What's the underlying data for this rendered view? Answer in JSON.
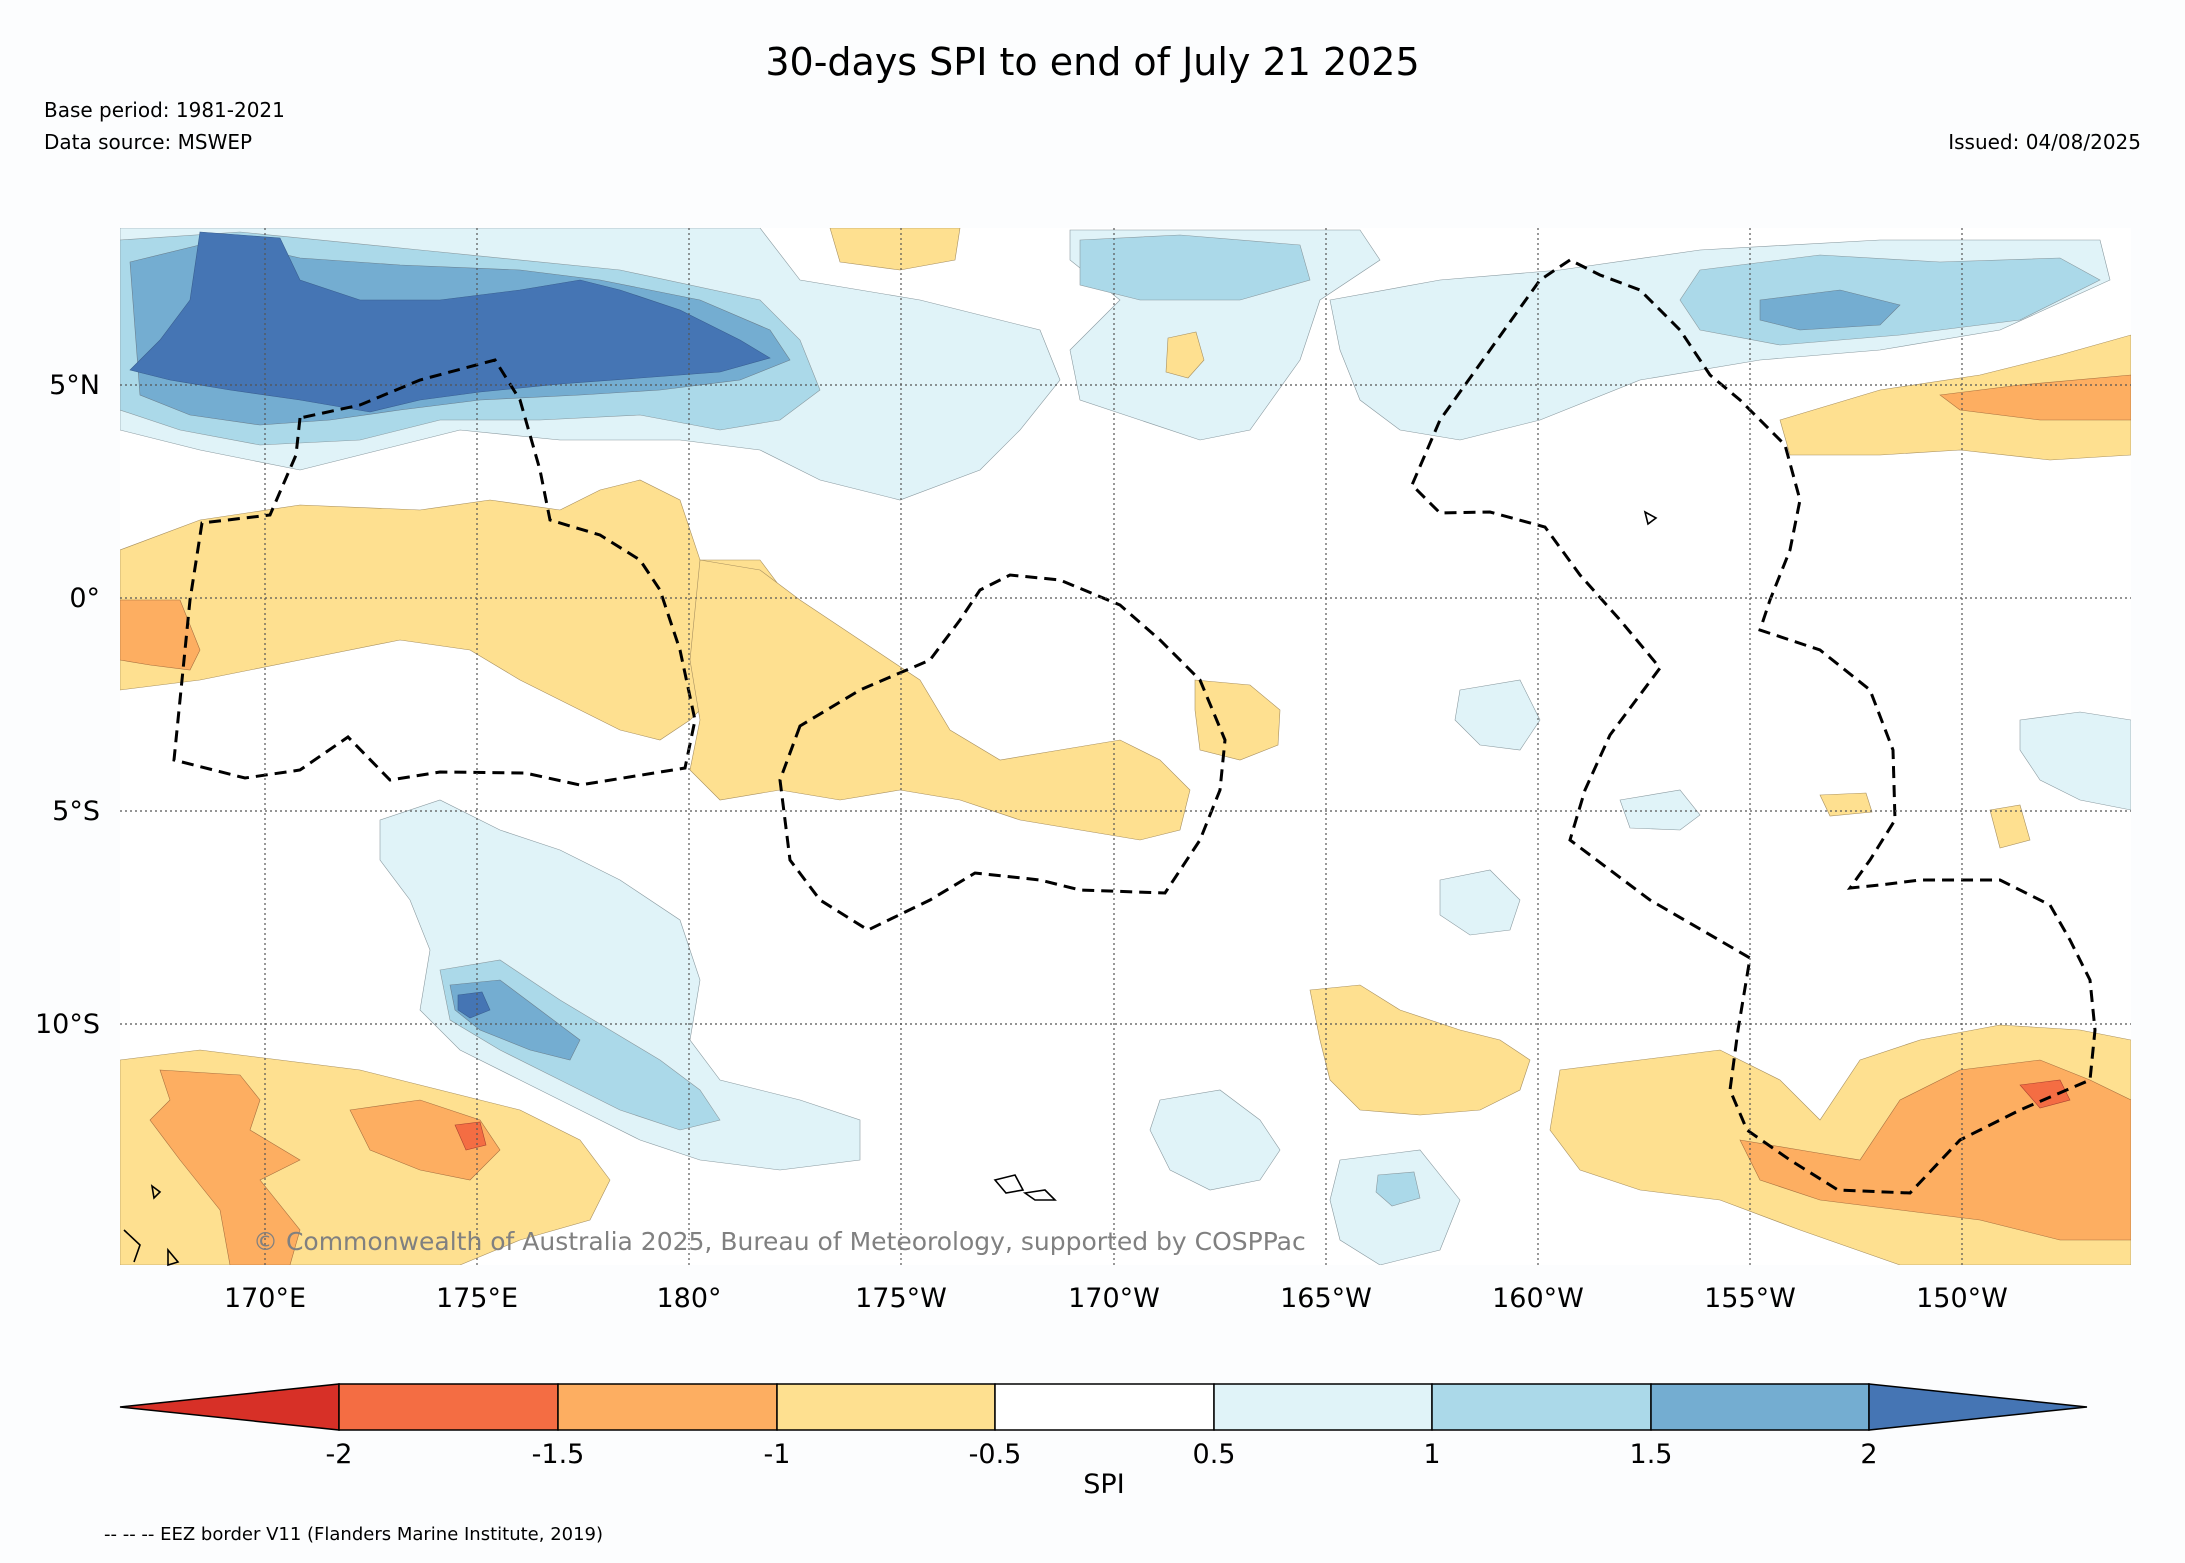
{
  "title": "30-days SPI to end of July 21 2025",
  "base_period": "Base period: 1981-2021",
  "data_source": "Data source: MSWEP",
  "issued": "Issued: 04/08/2025",
  "copyright": "© Commonwealth of Australia 2025, Bureau of Meteorology, supported by COSPPac",
  "footnote": "-- -- -- EEZ border V11 (Flanders Marine Institute, 2019)",
  "map": {
    "lat_labels": [
      "5°N",
      "0°",
      "5°S",
      "10°S"
    ],
    "lon_labels": [
      "170°E",
      "175°E",
      "180°",
      "175°W",
      "170°W",
      "165°W",
      "160°W",
      "155°W",
      "150°W"
    ]
  },
  "colorbar": {
    "label": "SPI",
    "ticks": [
      "-2",
      "-1.5",
      "-1",
      "-0.5",
      "0.5",
      "1",
      "1.5",
      "2"
    ],
    "colors": {
      "lt_-2": "#d73027",
      "-2_-1.5": "#f46d43",
      "-1.5_-1": "#fdae61",
      "-1_-0.5": "#fee090",
      "-0.5_0.5": "#ffffff",
      "0.5_1": "#e0f3f8",
      "1_1.5": "#abd9e9",
      "1.5_2": "#74add1",
      "gt_2": "#4575b4"
    }
  }
}
